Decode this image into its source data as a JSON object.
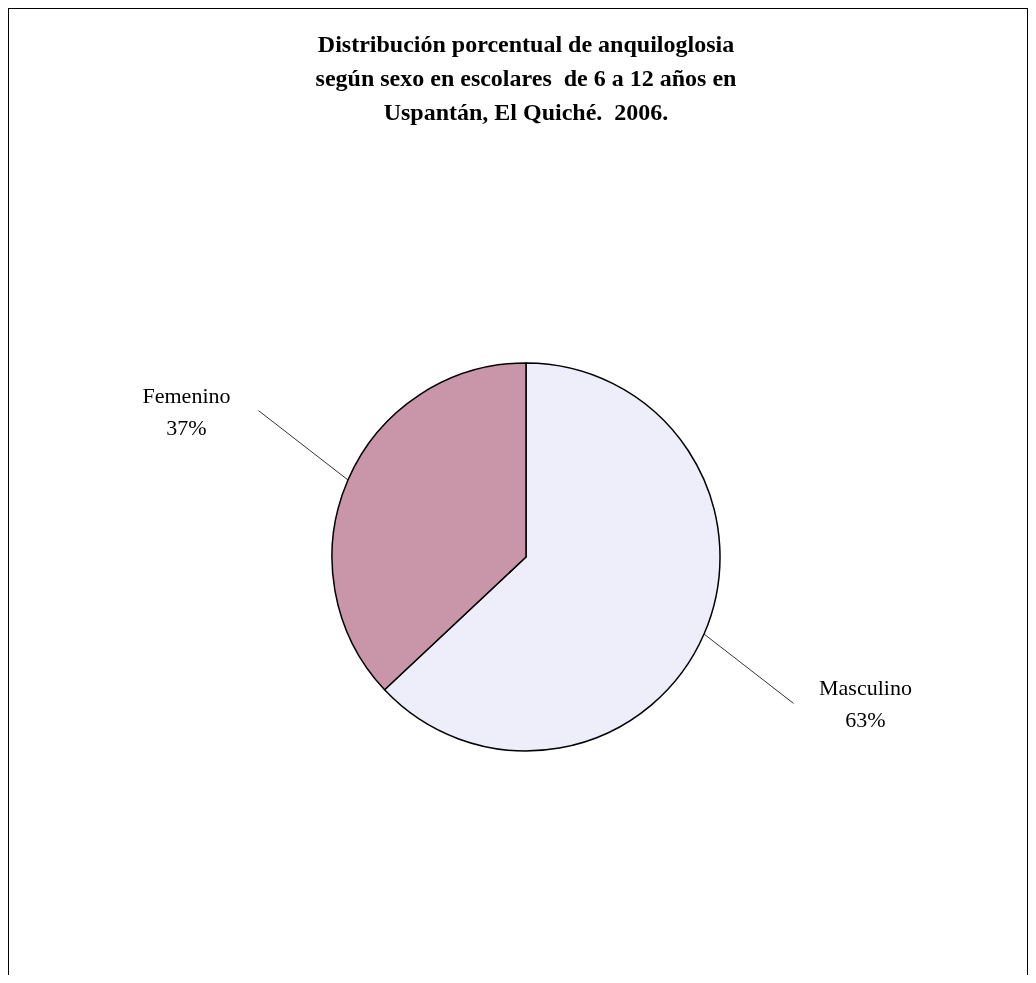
{
  "chart_data": {
    "type": "pie",
    "title": "Distribución porcentual de anquiloglosia\nsegún sexo en escolares  de 6 a 12 años en\nUspantán, El Quiché.  2006.",
    "categories": [
      "Masculino",
      "Femenino"
    ],
    "values": [
      63,
      37
    ],
    "value_labels": [
      "63%",
      "37%"
    ],
    "colors": [
      "#eeeefa",
      "#c896a8"
    ]
  }
}
